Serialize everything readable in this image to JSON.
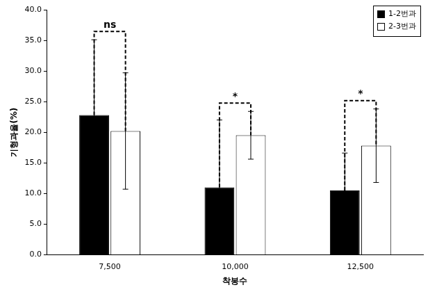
{
  "chart_data": {
    "type": "bar",
    "categories": [
      "7,500",
      "10,000",
      "12,500"
    ],
    "series": [
      {
        "name": "1-2번과",
        "color": "#000000",
        "values": [
          22.8,
          11.0,
          10.5
        ],
        "errors": [
          12.3,
          11.0,
          6.1
        ]
      },
      {
        "name": "2-3번과",
        "color": "#ffffff",
        "values": [
          20.2,
          19.5,
          17.8
        ],
        "errors": [
          9.5,
          3.9,
          6.0
        ]
      }
    ],
    "x_label": "착봉수",
    "y_label": "기형과율(%)",
    "ylim": [
      0,
      40
    ],
    "yticks": [
      {
        "value": 0,
        "label": "0.0"
      },
      {
        "value": 5,
        "label": "5.0"
      },
      {
        "value": 10,
        "label": "10.0"
      },
      {
        "value": 15,
        "label": "15.0"
      },
      {
        "value": 20,
        "label": "20.0"
      },
      {
        "value": 25,
        "label": "25.0"
      },
      {
        "value": 30,
        "label": "30.0"
      },
      {
        "value": 35,
        "label": "35.0"
      },
      {
        "value": 40,
        "label": "40.0"
      }
    ],
    "grid": false,
    "legend": "top-right",
    "annotations": [
      {
        "category": "7,500",
        "text": "ns"
      },
      {
        "category": "10,000",
        "text": "*"
      },
      {
        "category": "12,500",
        "text": "*"
      }
    ]
  }
}
